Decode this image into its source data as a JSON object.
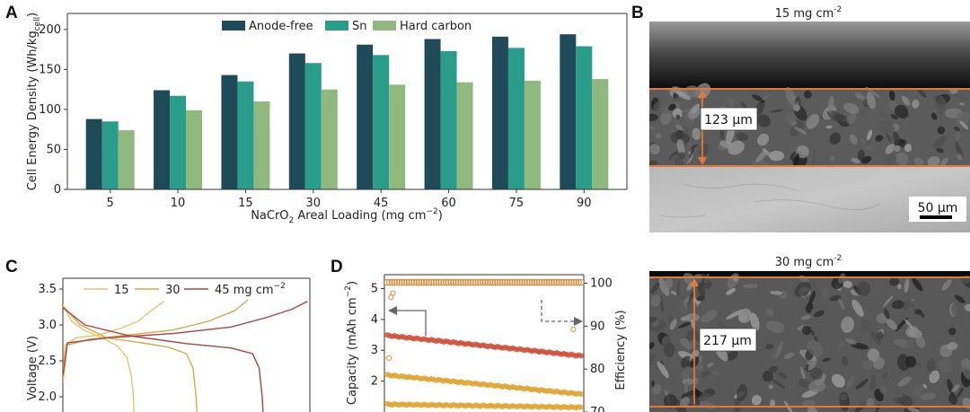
{
  "colors": {
    "anode_free": "#1f4a5a",
    "sn": "#2a9d8a",
    "hard_carbon": "#8fb97f",
    "cv15": "#e3c76a",
    "cv30": "#d7a84a",
    "cv45": "#a8433e",
    "cap_red": "#d0513c",
    "cap_gold": "#e1a532",
    "eff_orange": "#e08a3c",
    "sem_line": "#e0793a"
  },
  "panels": {
    "a": "A",
    "b": "B",
    "c": "C",
    "d": "D"
  },
  "chart_data": [
    {
      "type": "bar",
      "panel": "A",
      "categories": [
        "5",
        "10",
        "15",
        "30",
        "45",
        "60",
        "75",
        "90"
      ],
      "series": [
        {
          "name": "Anode-free",
          "values": [
            88,
            124,
            143,
            170,
            181,
            188,
            191,
            194
          ]
        },
        {
          "name": "Sn",
          "values": [
            85,
            117,
            135,
            158,
            168,
            173,
            177,
            179
          ]
        },
        {
          "name": "Hard carbon",
          "values": [
            74,
            99,
            110,
            125,
            131,
            134,
            136,
            138
          ]
        }
      ],
      "xlabel_main": "NaCrO",
      "xlabel_sub": "2",
      "xlabel_rest": " Areal Loading (mg cm",
      "xlabel_sup": "−2",
      "xlabel_end": ")",
      "ylabel_main": "Cell Energy Density (Wh/kg",
      "ylabel_sub": "cell",
      "ylabel_end": ")",
      "yticks": [
        "0",
        "50",
        "100",
        "150",
        "200"
      ],
      "ylim": [
        0,
        220
      ],
      "legend_position": "top"
    },
    {
      "type": "line",
      "panel": "C",
      "legend": [
        "15",
        "30",
        "45 mg cm",
        "−2"
      ],
      "ylabel": "Voltage (V)",
      "yticks": [
        "2.0",
        "2.5",
        "3.0",
        "3.5"
      ],
      "ylim": [
        1.65,
        3.65
      ],
      "xlim": [
        0,
        5.6
      ],
      "series": [
        {
          "name": "15",
          "charge_x": [
            0,
            0.05,
            0.3,
            0.8,
            1.3,
            1.7,
            2.0,
            2.3
          ],
          "charge_y": [
            2.28,
            2.72,
            2.82,
            2.86,
            2.95,
            3.05,
            3.2,
            3.33
          ],
          "discharge_x": [
            0,
            0.2,
            0.5,
            0.9,
            1.25,
            1.45,
            1.55,
            1.6,
            1.62
          ],
          "discharge_y": [
            3.28,
            3.05,
            2.92,
            2.82,
            2.7,
            2.55,
            2.3,
            2.0,
            1.65
          ]
        },
        {
          "name": "30",
          "charge_x": [
            0,
            0.1,
            0.6,
            1.5,
            2.5,
            3.3,
            3.9,
            4.2
          ],
          "charge_y": [
            2.2,
            2.72,
            2.8,
            2.86,
            2.93,
            3.05,
            3.2,
            3.35
          ],
          "discharge_x": [
            0,
            0.4,
            1.0,
            1.8,
            2.4,
            2.8,
            2.95,
            3.02,
            3.05
          ],
          "discharge_y": [
            3.26,
            3.0,
            2.82,
            2.75,
            2.69,
            2.6,
            2.4,
            2.0,
            1.65
          ]
        },
        {
          "name": "45",
          "charge_x": [
            0,
            0.1,
            1.0,
            2.5,
            3.8,
            4.6,
            5.2,
            5.55
          ],
          "charge_y": [
            2.3,
            2.75,
            2.82,
            2.88,
            2.97,
            3.1,
            3.22,
            3.33
          ],
          "discharge_x": [
            0,
            0.5,
            1.5,
            2.8,
            3.8,
            4.3,
            4.45,
            4.52,
            4.55
          ],
          "discharge_y": [
            3.24,
            3.0,
            2.85,
            2.74,
            2.68,
            2.6,
            2.4,
            2.0,
            1.65
          ]
        }
      ]
    },
    {
      "type": "scatter",
      "panel": "D",
      "ylabel_left_main": "Capacity (mAh cm",
      "ylabel_left_sup": "−2",
      "ylabel_left_end": ")",
      "ylabel_right": "Efficiency (%)",
      "yticks_left": [
        "2",
        "3",
        "4",
        "5"
      ],
      "yticks_right": [
        "70",
        "80",
        "90",
        "100"
      ],
      "ylim_left": [
        1.0,
        5.45
      ],
      "ylim_right": [
        70,
        102
      ],
      "series": [
        {
          "name": "efficiency",
          "axis": "right",
          "start": 100.2,
          "end": 100.2
        },
        {
          "name": "capacity-high",
          "axis": "left",
          "start": 3.48,
          "end": 2.82
        },
        {
          "name": "capacity-mid",
          "axis": "left",
          "start": 2.2,
          "end": 1.58
        },
        {
          "name": "capacity-low",
          "axis": "left",
          "start": 1.25,
          "end": 1.15
        }
      ],
      "outliers_left": [
        [
          0.02,
          4.72
        ],
        [
          0.03,
          4.85
        ],
        [
          0.96,
          3.68
        ],
        [
          0.01,
          2.75
        ]
      ]
    }
  ],
  "sem": {
    "top": {
      "title_main": "15 mg cm",
      "title_sup": "-2",
      "measure": "123 µm",
      "scale_bar": "50 µm"
    },
    "bottom": {
      "title_main": "30 mg cm",
      "title_sup": "-2",
      "measure": "217 µm"
    }
  }
}
